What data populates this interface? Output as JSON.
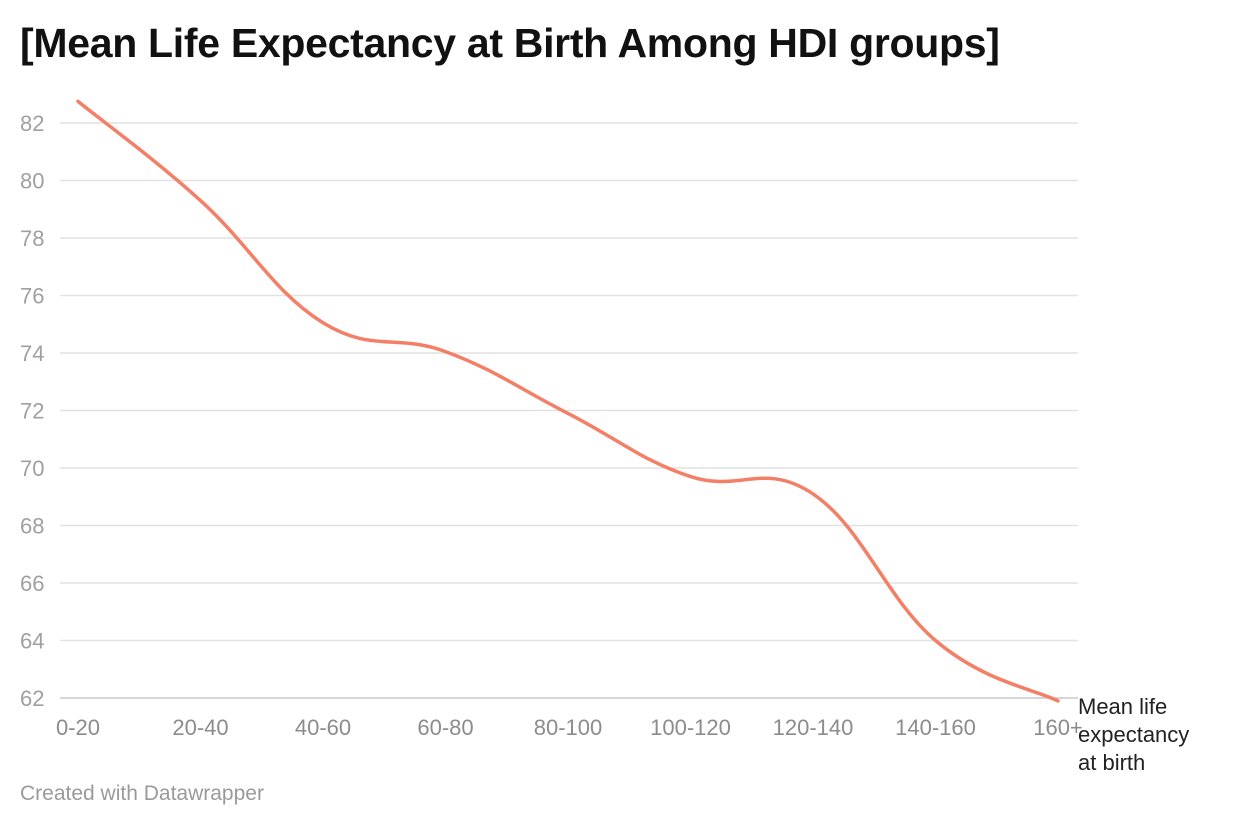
{
  "title": "[Mean Life Expectancy at Birth Among HDI groups]",
  "footer": "Created with Datawrapper",
  "chart_data": {
    "type": "line",
    "title": "[Mean Life Expectancy at Birth Among HDI groups]",
    "xlabel": "",
    "ylabel": "",
    "categories": [
      "0-20",
      "20-40",
      "40-60",
      "60-80",
      "80-100",
      "100-120",
      "120-140",
      "140-160",
      "160+"
    ],
    "series": [
      {
        "name": "Mean life expectancy at birth",
        "label_lines": [
          "Mean life",
          "expectancy",
          "at birth"
        ],
        "color": "#f47f67",
        "values": [
          82.75,
          79.3,
          75.05,
          74.05,
          71.9,
          69.7,
          69.1,
          64.0,
          61.9
        ]
      }
    ],
    "yticks": [
      62,
      64,
      66,
      68,
      70,
      72,
      74,
      76,
      78,
      80,
      82
    ],
    "ylim": [
      62,
      82.75
    ],
    "grid": true,
    "legend": "inline-end"
  }
}
